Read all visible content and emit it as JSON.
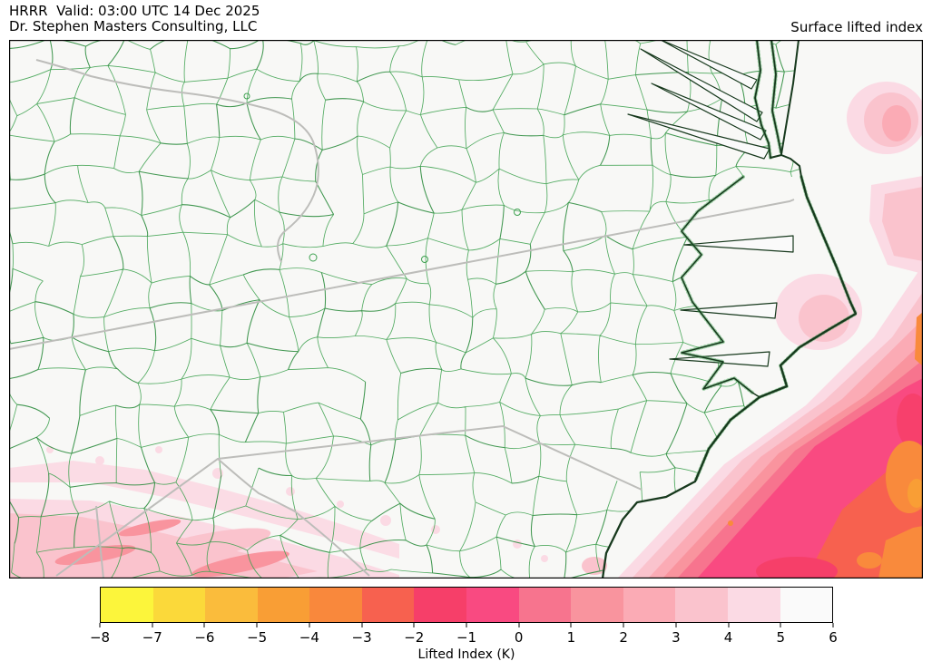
{
  "header": {
    "title_line1": "HRRR  Valid: 03:00 UTC 14 Dec 2025",
    "title_line2": "Dr. Stephen Masters Consulting, LLC",
    "title_right": "Surface lifted index"
  },
  "colorbar": {
    "label": "Lifted Index (K)",
    "tick_labels": [
      "−8",
      "−7",
      "−6",
      "−5",
      "−4",
      "−3",
      "−2",
      "−1",
      "0",
      "1",
      "2",
      "3",
      "4",
      "5",
      "6"
    ],
    "ticks": [
      -8,
      -7,
      -6,
      -5,
      -4,
      -3,
      -2,
      -1,
      0,
      1,
      2,
      3,
      4,
      5,
      6
    ],
    "colors": [
      "#fcf53b",
      "#fbd93a",
      "#fabc3c",
      "#f99e35",
      "#f9883c",
      "#f7614f",
      "#f63f69",
      "#f94a81",
      "#f7748e",
      "#f9949e",
      "#fbabb5",
      "#fac3cd",
      "#fbdae4",
      "#fafafa"
    ]
  },
  "map": {
    "land_color": "#f8f8f6",
    "county_line_color": "#3fa251",
    "county_line_dark_color": "#2c8c3e",
    "coastline_color": "#17391d",
    "state_border_color": "#bdbdba",
    "frame_color": "#000000"
  },
  "chart_data": {
    "type": "heatmap",
    "title": "Surface lifted index",
    "colorbar_label": "Lifted Index (K)",
    "value_range": [
      -8,
      6
    ],
    "bins": [
      {
        "from": -8,
        "to": -7,
        "color": "#fcf53b"
      },
      {
        "from": -7,
        "to": -6,
        "color": "#fbd93a"
      },
      {
        "from": -6,
        "to": -5,
        "color": "#fabc3c"
      },
      {
        "from": -5,
        "to": -4,
        "color": "#f99e35"
      },
      {
        "from": -4,
        "to": -3,
        "color": "#f9883c"
      },
      {
        "from": -3,
        "to": -2,
        "color": "#f7614f"
      },
      {
        "from": -2,
        "to": -1,
        "color": "#f63f69"
      },
      {
        "from": -1,
        "to": 0,
        "color": "#f94a81"
      },
      {
        "from": 0,
        "to": 1,
        "color": "#f7748e"
      },
      {
        "from": 1,
        "to": 2,
        "color": "#f9949e"
      },
      {
        "from": 2,
        "to": 3,
        "color": "#fbabb5"
      },
      {
        "from": 3,
        "to": 4,
        "color": "#fac3cd"
      },
      {
        "from": 4,
        "to": 5,
        "color": "#fbdae4"
      },
      {
        "from": 5,
        "to": 6,
        "color": "#fafafa"
      }
    ]
  }
}
